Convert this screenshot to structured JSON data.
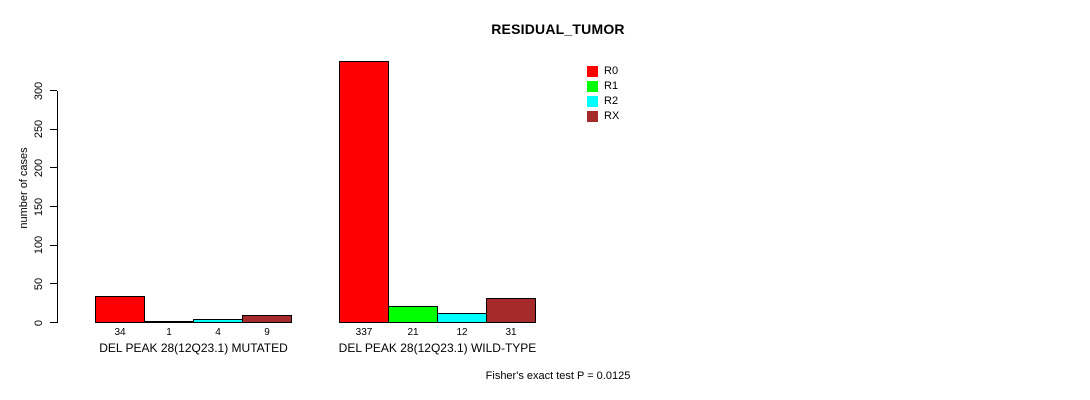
{
  "chart_data": {
    "type": "bar",
    "title": "RESIDUAL_TUMOR",
    "xlabel": "",
    "ylabel": "number of cases",
    "ylim": [
      0,
      300
    ],
    "yticks": [
      0,
      50,
      100,
      150,
      200,
      250,
      300
    ],
    "grid": false,
    "legend_position": "top-right",
    "categories": [
      "DEL PEAK 28(12Q23.1) MUTATED",
      "DEL PEAK 28(12Q23.1) WILD-TYPE"
    ],
    "series": [
      {
        "name": "R0",
        "color": "#FF0000",
        "values": [
          34,
          337
        ]
      },
      {
        "name": "R1",
        "color": "#00FF00",
        "values": [
          1,
          21
        ]
      },
      {
        "name": "R2",
        "color": "#00FFFF",
        "values": [
          4,
          12
        ]
      },
      {
        "name": "RX",
        "color": "#A52A2A",
        "values": [
          9,
          31
        ]
      }
    ],
    "annotation": "Fisher's exact test P = 0.0125"
  },
  "colors": {
    "background": "#FFFFFF",
    "axis": "#000000",
    "text": "#000000"
  }
}
